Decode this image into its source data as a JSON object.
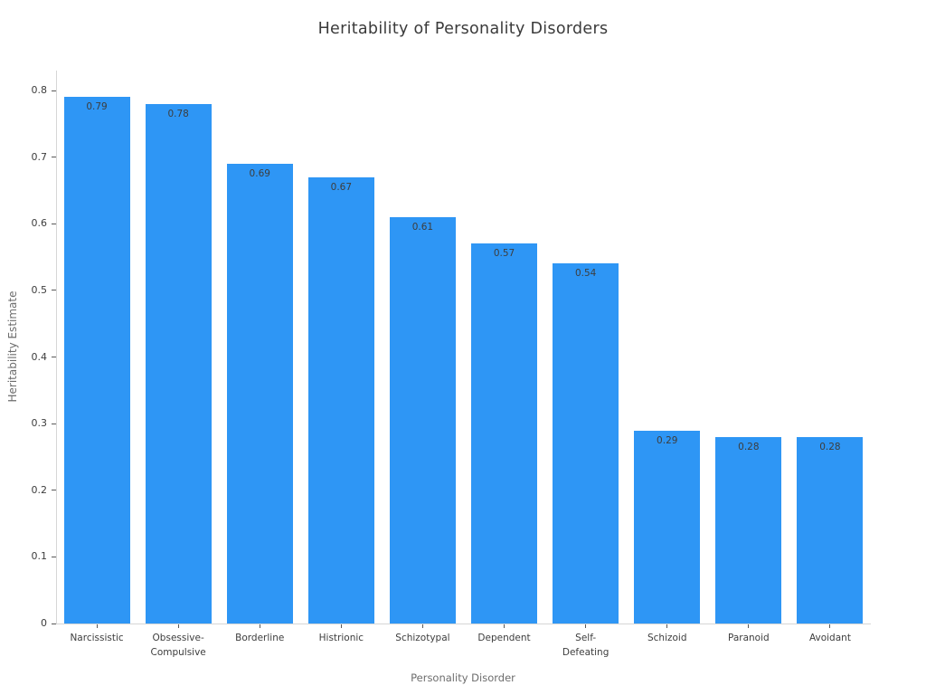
{
  "chart_data": {
    "type": "bar",
    "title": "Heritability of Personality Disorders",
    "xlabel": "Personality Disorder",
    "ylabel": "Heritability Estimate",
    "categories": [
      "Narcissistic",
      "Obsessive-\nCompulsive",
      "Borderline",
      "Histrionic",
      "Schizotypal",
      "Dependent",
      "Self-\nDefeating",
      "Schizoid",
      "Paranoid",
      "Avoidant"
    ],
    "values": [
      0.79,
      0.78,
      0.69,
      0.67,
      0.61,
      0.57,
      0.54,
      0.29,
      0.28,
      0.28
    ],
    "value_labels": [
      "0.79",
      "0.78",
      "0.69",
      "0.67",
      "0.61",
      "0.57",
      "0.54",
      "0.29",
      "0.28",
      "0.28"
    ],
    "yticks": [
      0,
      0.1,
      0.2,
      0.3,
      0.4,
      0.5,
      0.6,
      0.7,
      0.8
    ],
    "ytick_labels": [
      "0",
      "0.1",
      "0.2",
      "0.3",
      "0.4",
      "0.5",
      "0.6",
      "0.7",
      "0.8"
    ],
    "ylim": [
      0,
      0.83
    ],
    "grid": false,
    "legend": "none",
    "bar_color": "#2E96F5"
  },
  "colors": {
    "bar": "#2E96F5",
    "title_text": "#3b3b3b",
    "tick_text": "#3d3d3d",
    "axis_label_text": "#6d6d6d",
    "axis_line": "#d6d6d6",
    "tick_mark": "#5a5a5a",
    "value_label_text": "#3d3d3d",
    "background": "#ffffff"
  }
}
